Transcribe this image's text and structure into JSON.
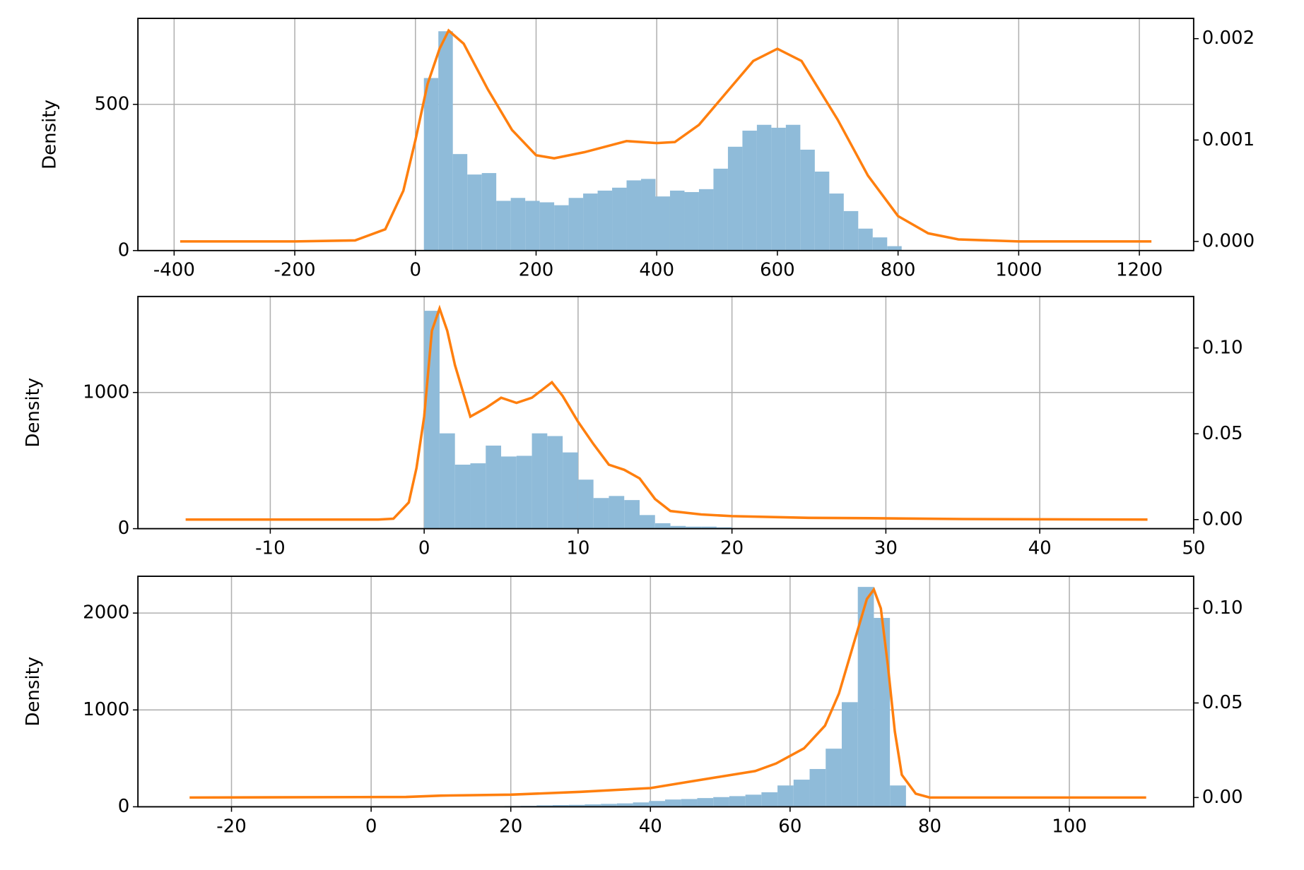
{
  "chart_data": [
    {
      "type": "histogram",
      "ylabel": "Density",
      "grid": true,
      "color": "#8fbbd9",
      "bins": [
        14,
        38,
        62,
        86,
        110,
        134,
        158,
        182,
        206,
        230,
        254,
        278,
        302,
        326,
        350,
        374,
        398,
        422,
        446,
        470,
        494,
        518,
        542,
        566,
        590,
        614,
        638,
        662,
        686,
        710,
        734,
        758,
        782,
        806
      ],
      "counts": [
        590,
        750,
        330,
        260,
        265,
        170,
        180,
        170,
        165,
        155,
        180,
        195,
        205,
        215,
        240,
        245,
        185,
        205,
        200,
        210,
        280,
        355,
        410,
        430,
        420,
        430,
        345,
        270,
        195,
        135,
        75,
        45,
        15
      ],
      "xlim": [
        -460,
        1290
      ],
      "xticks": [
        -400,
        -200,
        0,
        200,
        400,
        600,
        800,
        1000,
        1200
      ],
      "ylim": [
        0,
        794
      ],
      "yticks": [
        0,
        500
      ],
      "y2lim": [
        -9e-05,
        0.0022
      ],
      "y2ticks": [
        {
          "value": 0,
          "label": "0.000"
        },
        {
          "value": 0.001,
          "label": "0.001"
        },
        {
          "value": 0.002,
          "label": "0.002"
        }
      ],
      "series": [
        {
          "color": "#ff7f0e",
          "axis": "y2",
          "x": [
            -390,
            -200,
            -100,
            -50,
            -20,
            0,
            20,
            40,
            55,
            80,
            120,
            160,
            200,
            230,
            280,
            350,
            400,
            430,
            470,
            520,
            560,
            600,
            640,
            700,
            750,
            800,
            850,
            900,
            1000,
            1220
          ],
          "values": [
            0,
            0,
            1e-05,
            0.00012,
            0.0005,
            0.001,
            0.00155,
            0.0019,
            0.00208,
            0.00195,
            0.0015,
            0.0011,
            0.00085,
            0.00082,
            0.00088,
            0.00099,
            0.00097,
            0.00098,
            0.00115,
            0.0015,
            0.00178,
            0.0019,
            0.00178,
            0.0012,
            0.00065,
            0.00025,
            8e-05,
            2e-05,
            0,
            0
          ]
        }
      ]
    },
    {
      "type": "histogram",
      "ylabel": "Density",
      "grid": true,
      "color": "#8fbbd9",
      "bins": [
        0,
        1,
        2,
        3,
        4,
        5,
        6,
        7,
        8,
        9,
        10,
        11,
        12,
        13,
        14,
        15,
        16,
        17,
        18,
        19,
        20
      ],
      "counts": [
        1600,
        700,
        470,
        480,
        610,
        530,
        535,
        700,
        680,
        560,
        360,
        225,
        240,
        210,
        100,
        40,
        20,
        15,
        15,
        10
      ],
      "xlim": [
        -18.6,
        50
      ],
      "xticks": [
        -10,
        0,
        10,
        20,
        30,
        40,
        50
      ],
      "ylim": [
        0,
        1705
      ],
      "yticks": [
        0,
        1000
      ],
      "y2lim": [
        -0.0053,
        0.13
      ],
      "y2ticks": [
        {
          "value": 0,
          "label": "0.00"
        },
        {
          "value": 0.05,
          "label": "0.05"
        },
        {
          "value": 0.1,
          "label": "0.10"
        }
      ],
      "series": [
        {
          "color": "#ff7f0e",
          "axis": "y2",
          "x": [
            -15.5,
            -3,
            -2,
            -1,
            -0.5,
            0,
            0.5,
            1,
            1.5,
            2,
            3,
            4,
            5,
            6,
            7,
            8.3,
            9,
            10,
            11,
            12,
            13,
            14,
            15,
            16,
            18,
            20,
            25,
            29,
            35,
            47
          ],
          "values": [
            0,
            0,
            0.0005,
            0.01,
            0.03,
            0.06,
            0.11,
            0.123,
            0.11,
            0.09,
            0.06,
            0.065,
            0.071,
            0.068,
            0.071,
            0.08,
            0.072,
            0.057,
            0.044,
            0.032,
            0.029,
            0.024,
            0.012,
            0.005,
            0.003,
            0.002,
            0.001,
            0.0008,
            0.0003,
            0
          ]
        }
      ]
    },
    {
      "type": "histogram",
      "ylabel": "Density",
      "grid": true,
      "color": "#8fbbd9",
      "bins": [
        5.3,
        7.6,
        9.9,
        12.2,
        14.5,
        16.8,
        19.1,
        21.4,
        23.7,
        26,
        28.3,
        30.6,
        32.9,
        35.2,
        37.5,
        39.8,
        42.1,
        44.4,
        46.7,
        49,
        51.3,
        53.6,
        55.9,
        58.2,
        60.5,
        62.8,
        65.1,
        67.4,
        69.7,
        72,
        74.3,
        76.6
      ],
      "counts": [
        2,
        3,
        3,
        4,
        5,
        6,
        8,
        10,
        15,
        18,
        20,
        25,
        30,
        35,
        45,
        60,
        75,
        80,
        90,
        100,
        110,
        125,
        150,
        220,
        280,
        390,
        600,
        1080,
        2270,
        1950,
        220
      ],
      "xlim": [
        -33.4,
        117.8
      ],
      "xticks": [
        -20,
        0,
        20,
        40,
        60,
        80,
        100
      ],
      "ylim": [
        0,
        2380
      ],
      "yticks": [
        0,
        1000,
        2000
      ],
      "y2lim": [
        -0.0049,
        0.117
      ],
      "y2ticks": [
        {
          "value": 0,
          "label": "0.00"
        },
        {
          "value": 0.05,
          "label": "0.05"
        },
        {
          "value": 0.1,
          "label": "0.10"
        }
      ],
      "series": [
        {
          "color": "#ff7f0e",
          "axis": "y2",
          "x": [
            -26,
            5,
            10,
            20,
            30,
            40,
            45,
            50,
            55,
            58,
            62,
            65,
            67,
            69,
            71,
            72,
            73,
            74,
            75,
            76,
            78,
            80,
            111
          ],
          "values": [
            0,
            0.0003,
            0.001,
            0.0015,
            0.003,
            0.005,
            0.008,
            0.011,
            0.014,
            0.018,
            0.026,
            0.038,
            0.055,
            0.08,
            0.105,
            0.11,
            0.1,
            0.07,
            0.035,
            0.012,
            0.002,
            0,
            0
          ]
        }
      ]
    }
  ]
}
